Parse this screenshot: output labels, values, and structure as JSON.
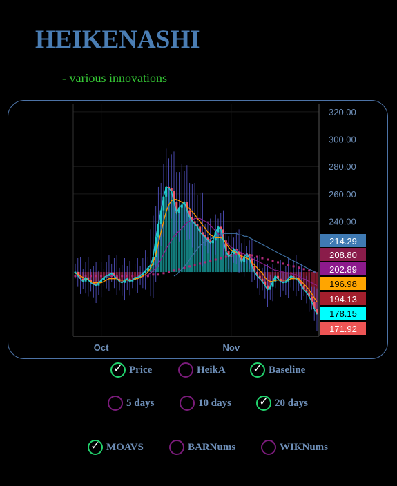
{
  "header": {
    "title": "HEIKENASHI",
    "subtitle": "- various innovations"
  },
  "chart_data": {
    "type": "candlestick",
    "y_ticks": [
      "320.00",
      "300.00",
      "280.00",
      "260.00",
      "240.00"
    ],
    "y_range": [
      156,
      326
    ],
    "x_ticks": [
      {
        "label": "Oct",
        "t": 10
      },
      {
        "label": "Nov",
        "t": 60
      }
    ],
    "n_days": 94,
    "baseline": 202.89,
    "grid": true,
    "colors": {
      "up": "#22c7cc",
      "down": "#f0596d",
      "wick": "#5b5bd6",
      "base_up": "#1aa7a7",
      "base_down": "#a5203a",
      "ma_orange": "#ff9900",
      "ma_purple": "#8a1d8a",
      "ma_blue": "#3d6fa0"
    },
    "price_series": [
      203,
      200,
      198,
      196,
      199,
      197,
      195,
      194,
      193,
      195,
      197,
      199,
      200,
      201,
      202,
      200,
      198,
      196,
      195,
      197,
      198,
      196,
      197,
      199,
      199,
      200,
      202,
      204,
      206,
      208,
      214,
      228,
      238,
      248,
      258,
      265,
      264,
      262,
      254,
      246,
      250,
      252,
      254,
      248,
      243,
      240,
      238,
      236,
      232,
      230,
      228,
      226,
      224,
      226,
      232,
      236,
      234,
      226,
      218,
      214,
      216,
      220,
      218,
      215,
      210,
      214,
      216,
      213,
      207,
      203,
      200,
      198,
      196,
      193,
      190,
      192,
      196,
      200,
      198,
      196,
      195,
      196,
      198,
      200,
      199,
      198,
      196,
      193,
      190,
      188,
      185,
      181,
      176,
      172
    ],
    "ma_orange": [
      202,
      201,
      200,
      199,
      198,
      197,
      196,
      195,
      195,
      195,
      195,
      196,
      197,
      198,
      198,
      198,
      198,
      197,
      197,
      197,
      197,
      197,
      197,
      198,
      198,
      199,
      200,
      201,
      203,
      206,
      210,
      216,
      224,
      232,
      240,
      247,
      252,
      255,
      256,
      256,
      255,
      254,
      253,
      251,
      249,
      247,
      245,
      242,
      240,
      237,
      235,
      232,
      230,
      229,
      228,
      228,
      228,
      227,
      224,
      221,
      219,
      218,
      217,
      216,
      214,
      214,
      213,
      212,
      210,
      208,
      206,
      204,
      202,
      199,
      197,
      196,
      196,
      197,
      197,
      197,
      197,
      197,
      197,
      198,
      198,
      198,
      198,
      196,
      194,
      192,
      190,
      187,
      184,
      181
    ],
    "ma_purple": [
      null,
      null,
      null,
      null,
      null,
      null,
      null,
      null,
      null,
      null,
      null,
      null,
      null,
      null,
      null,
      null,
      null,
      null,
      null,
      null,
      null,
      null,
      null,
      null,
      null,
      null,
      null,
      200,
      201,
      202,
      204,
      206,
      209,
      212,
      216,
      220,
      223,
      226,
      229,
      231,
      233,
      235,
      237,
      239,
      240,
      241,
      242,
      242,
      242,
      241,
      240,
      239,
      237,
      235,
      233,
      231,
      229,
      227,
      225,
      223,
      221,
      220,
      219,
      218,
      217,
      216,
      215,
      214,
      213,
      212,
      211,
      210,
      209,
      208,
      207,
      206,
      205,
      204,
      204,
      203,
      203,
      202,
      202,
      202,
      201,
      201,
      200,
      199,
      198,
      197,
      196,
      195,
      194,
      193
    ],
    "ma_blue": [
      null,
      null,
      null,
      null,
      null,
      null,
      null,
      null,
      null,
      null,
      null,
      null,
      null,
      null,
      null,
      null,
      null,
      null,
      null,
      null,
      null,
      null,
      null,
      null,
      null,
      null,
      null,
      null,
      null,
      null,
      null,
      null,
      null,
      null,
      null,
      null,
      null,
      null,
      200,
      201,
      203,
      205,
      207,
      209,
      212,
      215,
      217,
      220,
      222,
      224,
      225,
      226,
      227,
      228,
      229,
      230,
      230,
      231,
      231,
      231,
      231,
      231,
      231,
      230,
      230,
      229,
      229,
      228,
      227,
      226,
      225,
      224,
      223,
      222,
      221,
      220,
      219,
      218,
      217,
      216,
      215,
      214,
      213,
      212,
      211,
      210,
      209,
      208,
      207,
      206,
      205,
      204,
      203,
      202
    ],
    "markers_purple": [
      200,
      200,
      200,
      200,
      200,
      200,
      200,
      200,
      200,
      200,
      200,
      200,
      200,
      200,
      200,
      200,
      200,
      200,
      200,
      200,
      200,
      200,
      200,
      200,
      200,
      200,
      200,
      200,
      200,
      200,
      201,
      201,
      201,
      201,
      202,
      202,
      203,
      203,
      204,
      204,
      205,
      205,
      206,
      206,
      207,
      207,
      208,
      208,
      209,
      209,
      210,
      210,
      211,
      211,
      212,
      212,
      213,
      213,
      214,
      214,
      215,
      215,
      216,
      216,
      216,
      216,
      216,
      215,
      215,
      214,
      214,
      213,
      213,
      212,
      212,
      211,
      211,
      210,
      210,
      209,
      209,
      208,
      208,
      207,
      207,
      206,
      206,
      205,
      205,
      204,
      204,
      203,
      203,
      202
    ],
    "price_labels": [
      {
        "value": "214.29",
        "bg": "#3f7ab3",
        "fg": "#ffffff"
      },
      {
        "value": "208.80",
        "bg": "#8a1c4a",
        "fg": "#ffffff"
      },
      {
        "value": "202.89",
        "bg": "#8d1a8d",
        "fg": "#ffffff"
      },
      {
        "value": "196.98",
        "bg": "#ffa500",
        "fg": "#000000"
      },
      {
        "value": "194.13",
        "bg": "#a31f2d",
        "fg": "#ffffff"
      },
      {
        "value": "178.15",
        "bg": "#00ffff",
        "fg": "#000000"
      },
      {
        "value": "171.92",
        "bg": "#ee5555",
        "fg": "#ffffff"
      }
    ]
  },
  "options": {
    "row1": [
      {
        "label": "Price",
        "checked": true
      },
      {
        "label": "HeikA",
        "checked": false
      },
      {
        "label": "Baseline",
        "checked": true
      }
    ],
    "row2": [
      {
        "label": "5 days",
        "checked": false
      },
      {
        "label": "10 days",
        "checked": false
      },
      {
        "label": "20 days",
        "checked": true
      }
    ],
    "row3": [
      {
        "label": "MOAVS",
        "checked": true
      },
      {
        "label": "BARNums",
        "checked": false
      },
      {
        "label": "WIKNums",
        "checked": false
      }
    ],
    "check_glyph": "✓"
  }
}
